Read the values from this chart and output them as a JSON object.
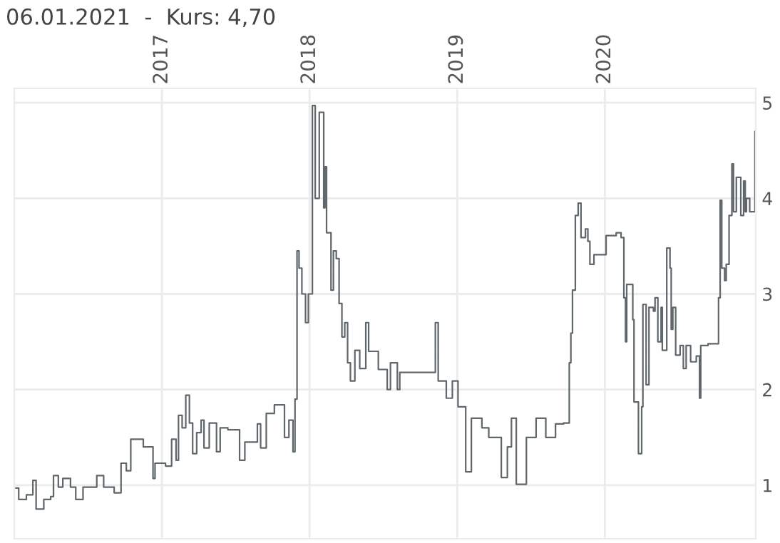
{
  "chart_data": {
    "type": "step",
    "title": "06.01.2021  -  Kurs: 4,70",
    "x": [
      "2016-01-06",
      "2016-01-13",
      "2016-02-01",
      "2016-02-17",
      "2016-02-25",
      "2016-03-15",
      "2016-04-01",
      "2016-04-08",
      "2016-04-20",
      "2016-05-01",
      "2016-05-20",
      "2016-06-02",
      "2016-06-20",
      "2016-07-10",
      "2016-07-24",
      "2016-08-10",
      "2016-08-22",
      "2016-09-05",
      "2016-09-22",
      "2016-10-05",
      "2016-10-16",
      "2016-11-01",
      "2016-11-16",
      "2016-12-10",
      "2016-12-15",
      "2017-01-10",
      "2017-01-25",
      "2017-02-05",
      "2017-02-11",
      "2017-02-20",
      "2017-03-01",
      "2017-03-10",
      "2017-03-18",
      "2017-03-28",
      "2017-04-08",
      "2017-04-15",
      "2017-04-28",
      "2017-05-16",
      "2017-05-25",
      "2017-06-13",
      "2017-06-28",
      "2017-07-12",
      "2017-07-25",
      "2017-08-15",
      "2017-08-25",
      "2017-09-02",
      "2017-09-16",
      "2017-10-06",
      "2017-10-31",
      "2017-11-11",
      "2017-11-21",
      "2017-11-26",
      "2017-12-01",
      "2017-12-06",
      "2017-12-13",
      "2017-12-22",
      "2017-12-29",
      "2018-01-08",
      "2018-01-15",
      "2018-01-25",
      "2018-02-05",
      "2018-02-08",
      "2018-02-12",
      "2018-02-23",
      "2018-03-01",
      "2018-03-08",
      "2018-03-15",
      "2018-03-22",
      "2018-03-29",
      "2018-04-05",
      "2018-04-12",
      "2018-04-23",
      "2018-05-05",
      "2018-05-20",
      "2018-05-27",
      "2018-06-20",
      "2018-07-12",
      "2018-07-20",
      "2018-08-06",
      "2018-08-12",
      "2018-11-01",
      "2018-11-08",
      "2018-11-15",
      "2018-12-05",
      "2018-12-20",
      "2019-01-03",
      "2019-01-22",
      "2019-02-05",
      "2019-03-03",
      "2019-03-20",
      "2019-04-06",
      "2019-04-20",
      "2019-05-05",
      "2019-05-15",
      "2019-05-27",
      "2019-06-21",
      "2019-07-15",
      "2019-08-08",
      "2019-09-01",
      "2019-09-21",
      "2019-10-05",
      "2019-10-09",
      "2019-10-13",
      "2019-10-20",
      "2019-10-27",
      "2019-11-03",
      "2019-11-14",
      "2019-11-20",
      "2019-11-25",
      "2019-12-05",
      "2020-01-01",
      "2020-01-04",
      "2020-01-29",
      "2020-02-10",
      "2020-02-17",
      "2020-02-21",
      "2020-02-24",
      "2020-03-10",
      "2020-03-13",
      "2020-03-24",
      "2020-04-01",
      "2020-04-04",
      "2020-04-12",
      "2020-04-19",
      "2020-04-30",
      "2020-05-04",
      "2020-05-11",
      "2020-05-19",
      "2020-05-22",
      "2020-06-02",
      "2020-06-10",
      "2020-06-13",
      "2020-06-17",
      "2020-06-24",
      "2020-07-05",
      "2020-07-13",
      "2020-07-20",
      "2020-07-31",
      "2020-08-14",
      "2020-08-22",
      "2020-08-25",
      "2020-09-12",
      "2020-10-05",
      "2020-10-08",
      "2020-10-12",
      "2020-10-16",
      "2020-10-23",
      "2020-10-27",
      "2020-11-03",
      "2020-11-10",
      "2020-11-14",
      "2020-11-21",
      "2020-12-02",
      "2020-12-09",
      "2020-12-13",
      "2020-12-16",
      "2020-12-24",
      "2021-01-06"
    ],
    "series": [
      {
        "color": "#5f676b",
        "values": [
          0.97,
          0.85,
          0.9,
          1.05,
          0.75,
          0.85,
          0.88,
          1.1,
          0.98,
          1.07,
          0.98,
          0.85,
          0.98,
          0.98,
          1.1,
          0.98,
          0.98,
          0.92,
          1.23,
          1.15,
          1.48,
          1.48,
          1.4,
          1.07,
          1.23,
          1.2,
          1.48,
          1.26,
          1.73,
          1.6,
          1.94,
          1.65,
          1.33,
          1.55,
          1.68,
          1.39,
          1.65,
          1.35,
          1.6,
          1.58,
          1.58,
          1.26,
          1.45,
          1.45,
          1.64,
          1.39,
          1.75,
          1.84,
          1.5,
          1.68,
          1.35,
          1.9,
          3.45,
          3.27,
          3.0,
          2.7,
          3.0,
          4.97,
          4.0,
          4.9,
          3.9,
          4.33,
          3.64,
          3.04,
          3.45,
          3.37,
          2.9,
          2.55,
          2.7,
          2.28,
          2.09,
          2.41,
          2.22,
          2.7,
          2.4,
          2.21,
          2.0,
          2.28,
          2.0,
          2.18,
          2.18,
          2.7,
          2.09,
          1.91,
          2.09,
          1.82,
          1.14,
          1.7,
          1.6,
          1.5,
          1.5,
          1.08,
          1.4,
          1.7,
          1.01,
          1.5,
          1.7,
          1.5,
          1.64,
          1.65,
          2.28,
          2.59,
          3.04,
          3.82,
          3.95,
          3.59,
          3.68,
          3.55,
          3.31,
          3.41,
          3.41,
          3.61,
          3.64,
          3.59,
          2.96,
          2.5,
          3.1,
          2.73,
          1.87,
          1.33,
          1.82,
          2.89,
          2.05,
          2.86,
          2.82,
          2.96,
          2.5,
          2.86,
          2.41,
          3.48,
          3.27,
          2.63,
          2.86,
          2.36,
          2.46,
          2.22,
          2.46,
          2.29,
          2.35,
          1.91,
          2.46,
          2.48,
          2.48,
          2.96,
          3.98,
          3.27,
          3.14,
          3.31,
          3.82,
          4.36,
          3.86,
          4.22,
          3.82,
          4.18,
          3.86,
          4.0,
          3.86,
          4.7
        ]
      }
    ],
    "xlim": [
      "2016-01-02",
      "2021-01-08"
    ],
    "xticks": [
      {
        "value": "2017-01-01",
        "label": "2017"
      },
      {
        "value": "2018-01-01",
        "label": "2018"
      },
      {
        "value": "2019-01-01",
        "label": "2019"
      },
      {
        "value": "2020-01-01",
        "label": "2020"
      }
    ],
    "ylim": [
      0.44,
      5.15
    ],
    "yticks": [
      1,
      2,
      3,
      4,
      5
    ],
    "grid": true,
    "line_style": "solid"
  }
}
